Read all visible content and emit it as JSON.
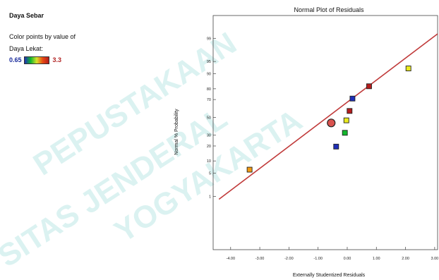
{
  "sidebar": {
    "title": "Daya Sebar",
    "note_line1": "Color points by value of",
    "note_line2": "Daya Lekat:",
    "legend_min": "0.65",
    "legend_max": "3.3",
    "gradient_colors": [
      "#1f2fb8",
      "#12b82c",
      "#d8e12a",
      "#e84a14",
      "#b41c1c"
    ]
  },
  "watermark": [
    "PEPUSTAKAAN",
    "SITAS JENDERAL",
    "YOGYAKARTA"
  ],
  "colors": {
    "fit_line": "#c03a3a",
    "frame": "#444444",
    "watermark": "#bfe8e6"
  },
  "chart_data": {
    "type": "scatter",
    "title": "Normal Plot of Residuals",
    "xlabel": "Externally Studentized Residuals",
    "ylabel": "Normal % Probability",
    "xlim": [
      -4.6,
      3.1
    ],
    "x_ticks": [
      -4.0,
      -3.0,
      -2.0,
      -1.0,
      0.0,
      1.0,
      2.0,
      3.0
    ],
    "x_tick_labels": [
      "-4.00",
      "-3.00",
      "-2.00",
      "-1.00",
      "0.00",
      "1.00",
      "2.00",
      "3.00"
    ],
    "y_scale": "normal-probability",
    "y_ticks": [
      1,
      5,
      10,
      20,
      30,
      50,
      70,
      80,
      90,
      95,
      99
    ],
    "y_tick_labels": [
      "1",
      "5",
      "10",
      "20",
      "30",
      "50",
      "70",
      "80",
      "90",
      "95",
      "99"
    ],
    "fit_line": {
      "x": [
        -4.4,
        3.1
      ],
      "y": [
        0.8,
        99.3
      ]
    },
    "points": [
      {
        "x": -3.35,
        "y": 6.2,
        "color": "#f29a12",
        "shape": "square"
      },
      {
        "x": -0.38,
        "y": 19.5,
        "color": "#1f2fb8",
        "shape": "square"
      },
      {
        "x": -0.08,
        "y": 32.5,
        "color": "#12b82c",
        "shape": "square"
      },
      {
        "x": -0.55,
        "y": 43.5,
        "color": "#d9534f",
        "shape": "circle"
      },
      {
        "x": -0.03,
        "y": 46.5,
        "color": "#eaea1e",
        "shape": "square"
      },
      {
        "x": 0.08,
        "y": 57.5,
        "color": "#b41c1c",
        "shape": "square"
      },
      {
        "x": 0.18,
        "y": 71.0,
        "color": "#1f2fb8",
        "shape": "square"
      },
      {
        "x": 0.75,
        "y": 82.0,
        "color": "#b41c1c",
        "shape": "square"
      },
      {
        "x": 2.1,
        "y": 92.5,
        "color": "#eaea1e",
        "shape": "square"
      }
    ]
  }
}
